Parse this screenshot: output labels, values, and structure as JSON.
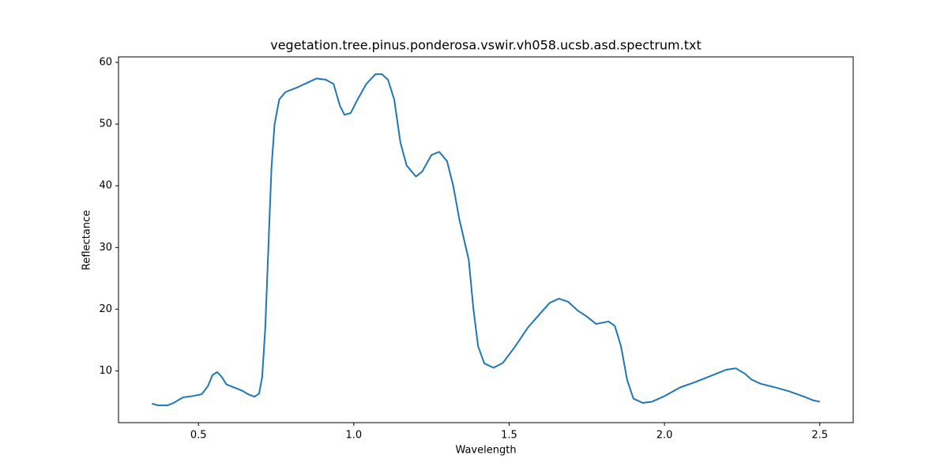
{
  "chart_data": {
    "type": "line",
    "title": "vegetation.tree.pinus.ponderosa.vswir.vh058.ucsb.asd.spectrum.txt",
    "x_label": "Wavelength",
    "y_label": "Reflectance",
    "x": [
      0.35,
      0.37,
      0.4,
      0.42,
      0.45,
      0.48,
      0.51,
      0.53,
      0.545,
      0.56,
      0.575,
      0.59,
      0.62,
      0.64,
      0.66,
      0.68,
      0.695,
      0.705,
      0.715,
      0.725,
      0.735,
      0.745,
      0.76,
      0.78,
      0.82,
      0.85,
      0.88,
      0.91,
      0.935,
      0.955,
      0.97,
      0.99,
      1.01,
      1.04,
      1.07,
      1.09,
      1.11,
      1.13,
      1.15,
      1.17,
      1.2,
      1.22,
      1.25,
      1.275,
      1.3,
      1.32,
      1.34,
      1.37,
      1.385,
      1.4,
      1.42,
      1.45,
      1.48,
      1.52,
      1.56,
      1.6,
      1.63,
      1.66,
      1.69,
      1.72,
      1.75,
      1.78,
      1.82,
      1.84,
      1.86,
      1.88,
      1.9,
      1.93,
      1.96,
      2.0,
      2.05,
      2.1,
      2.15,
      2.2,
      2.23,
      2.26,
      2.28,
      2.31,
      2.35,
      2.4,
      2.45,
      2.48,
      2.5
    ],
    "series": [
      {
        "name": "spectrum",
        "color": "#1f77b4",
        "values": [
          4.7,
          4.4,
          4.4,
          4.8,
          5.7,
          5.9,
          6.2,
          7.5,
          9.3,
          9.8,
          9.0,
          7.8,
          7.2,
          6.8,
          6.2,
          5.8,
          6.3,
          9,
          17,
          30,
          43,
          50,
          54,
          55.2,
          56,
          56.7,
          57.4,
          57.2,
          56.5,
          53,
          51.5,
          51.8,
          53.8,
          56.5,
          58.1,
          58.1,
          57.2,
          54,
          47,
          43.3,
          41.5,
          42.3,
          45,
          45.5,
          44,
          40,
          34.5,
          28,
          20,
          14,
          11.2,
          10.5,
          11.3,
          14,
          17,
          19.3,
          21,
          21.7,
          21.2,
          19.8,
          18.8,
          17.6,
          18,
          17.3,
          14,
          8.5,
          5.5,
          4.8,
          5,
          5.9,
          7.3,
          8.2,
          9.2,
          10.2,
          10.4,
          9.5,
          8.6,
          7.9,
          7.4,
          6.7,
          5.8,
          5.2,
          5.0
        ]
      }
    ],
    "xlim": [
      0.2425,
      2.6075
    ],
    "ylim": [
      1.6,
      60.9
    ],
    "xticks": [
      {
        "value": 0.5,
        "label": "0.5"
      },
      {
        "value": 1.0,
        "label": "1.0"
      },
      {
        "value": 1.5,
        "label": "1.5"
      },
      {
        "value": 2.0,
        "label": "2.0"
      },
      {
        "value": 2.5,
        "label": "2.5"
      }
    ],
    "yticks": [
      10,
      20,
      30,
      40,
      50,
      60
    ]
  }
}
